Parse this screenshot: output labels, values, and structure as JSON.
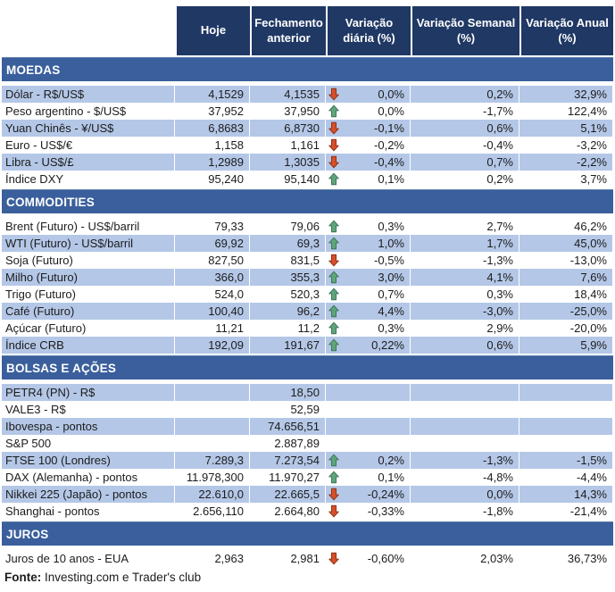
{
  "table": {
    "columns": [
      "",
      "Hoje",
      "Fechamento anterior",
      "Variação diária (%)",
      "Variação Semanal (%)",
      "Variação Anual (%)"
    ],
    "sections": [
      {
        "title": "MOEDAS",
        "first_row_shaded": true,
        "rows": [
          {
            "label": "Dólar - R$/US$",
            "hoje": "4,1529",
            "fechamento": "4,1535",
            "arrow": "down",
            "var_diaria": "0,0%",
            "var_semanal": "0,2%",
            "var_anual": "32,9%"
          },
          {
            "label": "Peso argentino - $/US$",
            "hoje": "37,952",
            "fechamento": "37,950",
            "arrow": "up",
            "var_diaria": "0,0%",
            "var_semanal": "-1,7%",
            "var_anual": "122,4%"
          },
          {
            "label": "Yuan Chinês - ¥/US$",
            "hoje": "6,8683",
            "fechamento": "6,8730",
            "arrow": "down",
            "var_diaria": "-0,1%",
            "var_semanal": "0,6%",
            "var_anual": "5,1%"
          },
          {
            "label": "Euro - US$/€",
            "hoje": "1,158",
            "fechamento": "1,161",
            "arrow": "down",
            "var_diaria": "-0,2%",
            "var_semanal": "-0,4%",
            "var_anual": "-3,2%"
          },
          {
            "label": "Libra - US$/£",
            "hoje": "1,2989",
            "fechamento": "1,3035",
            "arrow": "down",
            "var_diaria": "-0,4%",
            "var_semanal": "0,7%",
            "var_anual": "-2,2%"
          },
          {
            "label": "Índice DXY",
            "hoje": "95,240",
            "fechamento": "95,140",
            "arrow": "up",
            "var_diaria": "0,1%",
            "var_semanal": "0,2%",
            "var_anual": "3,7%"
          }
        ]
      },
      {
        "title": "COMMODITIES",
        "first_row_shaded": false,
        "rows": [
          {
            "label": "Brent (Futuro) - US$/barril",
            "hoje": "79,33",
            "fechamento": "79,06",
            "arrow": "up",
            "var_diaria": "0,3%",
            "var_semanal": "2,7%",
            "var_anual": "46,2%"
          },
          {
            "label": "WTI (Futuro) - US$/barril",
            "hoje": "69,92",
            "fechamento": "69,3",
            "arrow": "up",
            "var_diaria": "1,0%",
            "var_semanal": "1,7%",
            "var_anual": "45,0%"
          },
          {
            "label": "Soja (Futuro)",
            "hoje": "827,50",
            "fechamento": "831,5",
            "arrow": "down",
            "var_diaria": "-0,5%",
            "var_semanal": "-1,3%",
            "var_anual": "-13,0%"
          },
          {
            "label": "Milho (Futuro)",
            "hoje": "366,0",
            "fechamento": "355,3",
            "arrow": "up",
            "var_diaria": "3,0%",
            "var_semanal": "4,1%",
            "var_anual": "7,6%"
          },
          {
            "label": "Trigo (Futuro)",
            "hoje": "524,0",
            "fechamento": "520,3",
            "arrow": "up",
            "var_diaria": "0,7%",
            "var_semanal": "0,3%",
            "var_anual": "18,4%"
          },
          {
            "label": "Café (Futuro)",
            "hoje": "100,40",
            "fechamento": "96,2",
            "arrow": "up",
            "var_diaria": "4,4%",
            "var_semanal": "-3,0%",
            "var_anual": "-25,0%"
          },
          {
            "label": "Açúcar (Futuro)",
            "hoje": "11,21",
            "fechamento": "11,2",
            "arrow": "up",
            "var_diaria": "0,3%",
            "var_semanal": "2,9%",
            "var_anual": "-20,0%"
          },
          {
            "label": "Índice CRB",
            "hoje": "192,09",
            "fechamento": "191,67",
            "arrow": "up",
            "var_diaria": "0,22%",
            "var_semanal": "0,6%",
            "var_anual": "5,9%"
          }
        ]
      },
      {
        "title": "BOLSAS E AÇÕES",
        "first_row_shaded": true,
        "rows": [
          {
            "label": "PETR4 (PN) - R$",
            "hoje": "",
            "fechamento": "18,50",
            "arrow": null,
            "var_diaria": "",
            "var_semanal": "",
            "var_anual": ""
          },
          {
            "label": "VALE3 - R$",
            "hoje": "",
            "fechamento": "52,59",
            "arrow": null,
            "var_diaria": "",
            "var_semanal": "",
            "var_anual": ""
          },
          {
            "label": "Ibovespa - pontos",
            "hoje": "",
            "fechamento": "74.656,51",
            "arrow": null,
            "var_diaria": "",
            "var_semanal": "",
            "var_anual": ""
          },
          {
            "label": "S&P 500",
            "hoje": "",
            "fechamento": "2.887,89",
            "arrow": null,
            "var_diaria": "",
            "var_semanal": "",
            "var_anual": ""
          },
          {
            "label": "FTSE 100 (Londres)",
            "hoje": "7.289,3",
            "fechamento": "7.273,54",
            "arrow": "up",
            "var_diaria": "0,2%",
            "var_semanal": "-1,3%",
            "var_anual": "-1,5%"
          },
          {
            "label": "DAX (Alemanha) - pontos",
            "hoje": "11.978,300",
            "fechamento": "11.970,27",
            "arrow": "up",
            "var_diaria": "0,1%",
            "var_semanal": "-4,8%",
            "var_anual": "-4,4%"
          },
          {
            "label": "Nikkei 225 (Japão) - pontos",
            "hoje": "22.610,0",
            "fechamento": "22.665,5",
            "arrow": "down",
            "var_diaria": "-0,24%",
            "var_semanal": "0,0%",
            "var_anual": "14,3%"
          },
          {
            "label": "Shanghai - pontos",
            "hoje": "2.656,110",
            "fechamento": "2.664,80",
            "arrow": "down",
            "var_diaria": "-0,33%",
            "var_semanal": "-1,8%",
            "var_anual": "-21,4%"
          }
        ]
      },
      {
        "title": "JUROS",
        "first_row_shaded": false,
        "rows": [
          {
            "label": "Juros de 10 anos - EUA",
            "hoje": "2,963",
            "fechamento": "2,981",
            "arrow": "down",
            "var_diaria": "-0,60%",
            "var_semanal": "2,03%",
            "var_anual": "36,73%"
          }
        ]
      }
    ]
  },
  "footer": {
    "source_label": "Fonte:",
    "source_text": " Investing.com e Trader's club"
  },
  "colors": {
    "header_bg": "#1F3864",
    "section_bar_bg": "#3A5F9C",
    "row_shaded_bg": "#B4C7E7",
    "row_plain_bg": "#FFFFFF",
    "arrow_up_fill": "#5EA57B",
    "arrow_up_stroke": "#3F7458",
    "arrow_down_fill": "#D5502B",
    "arrow_down_stroke": "#8E3014"
  }
}
